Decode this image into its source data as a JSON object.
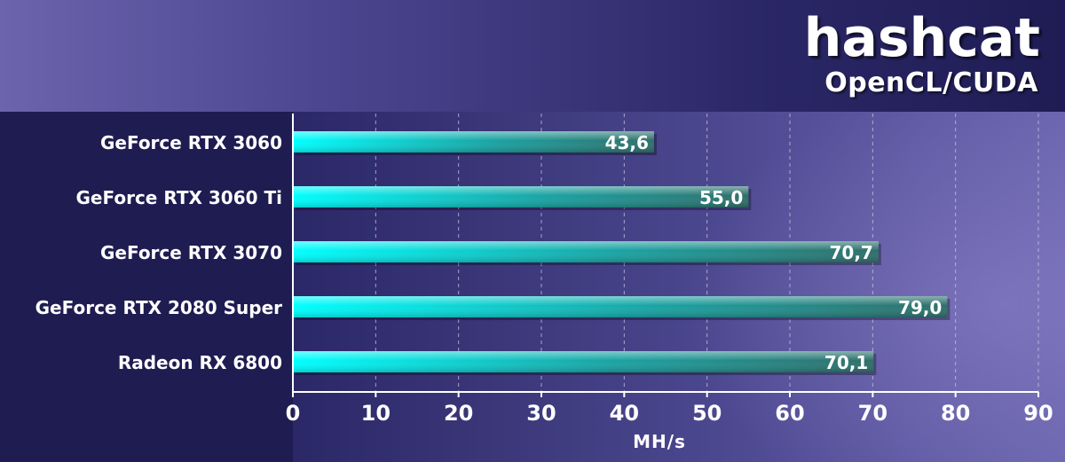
{
  "header": {
    "title": "hashcat",
    "subtitle": "OpenCL/CUDA"
  },
  "colors": {
    "bar_start": "#00ffff",
    "bar_end": "#2f6f6a",
    "grid": "#c8c8e6",
    "text": "#ffffff"
  },
  "chart_data": {
    "type": "bar",
    "orientation": "horizontal",
    "title": "hashcat",
    "subtitle": "OpenCL/CUDA",
    "categories": [
      "GeForce RTX 3060",
      "GeForce RTX 3060 Ti",
      "GeForce RTX 3070",
      "GeForce RTX 2080 Super",
      "Radeon RX 6800"
    ],
    "values": [
      43.6,
      55.0,
      70.7,
      79.0,
      70.1
    ],
    "value_labels": [
      "43,6",
      "55,0",
      "70,7",
      "79,0",
      "70,1"
    ],
    "xlabel": "MH/s",
    "ylabel": "",
    "xlim": [
      0,
      90
    ],
    "ticks": [
      0,
      10,
      20,
      30,
      40,
      50,
      60,
      70,
      80,
      90
    ],
    "tick_labels": [
      "0",
      "10",
      "20",
      "30",
      "40",
      "50",
      "60",
      "70",
      "80",
      "90"
    ],
    "grid": true,
    "grid_style": "dashed vertical",
    "legend": "none"
  }
}
